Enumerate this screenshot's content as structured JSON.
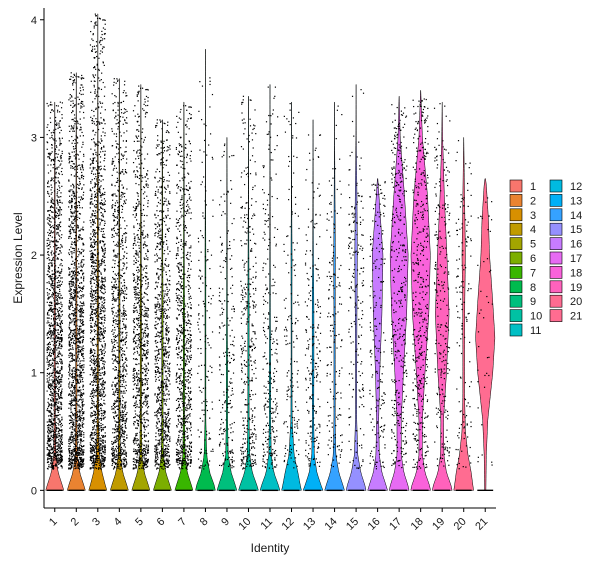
{
  "chart_data": {
    "type": "violin",
    "title": "",
    "xlabel": "Identity",
    "ylabel": "Expression Level",
    "ylim": [
      -0.15,
      4.1
    ],
    "yticks": [
      0,
      1,
      2,
      3,
      4
    ],
    "grid": false,
    "legend_position": "right",
    "points_overlay": true,
    "categories": [
      "1",
      "2",
      "3",
      "4",
      "5",
      "6",
      "7",
      "8",
      "9",
      "10",
      "11",
      "12",
      "13",
      "14",
      "15",
      "16",
      "17",
      "18",
      "19",
      "20",
      "21"
    ],
    "colors": [
      "#F8766D",
      "#EA8331",
      "#D89000",
      "#C09B00",
      "#A3A500",
      "#7CAE00",
      "#39B600",
      "#00BB4E",
      "#00BF7D",
      "#00C1A3",
      "#00BFC4",
      "#00BAE0",
      "#00B0F6",
      "#35A2FF",
      "#9590FF",
      "#C77CFF",
      "#E76BF3",
      "#FA62DB",
      "#FF62BC",
      "#FF6C91",
      "#FF6C91"
    ],
    "violins": [
      {
        "category": "1",
        "max": 3.3,
        "point_count": 1500,
        "profile": [
          [
            0,
            0.42
          ],
          [
            0.05,
            0.34
          ],
          [
            0.15,
            0.16
          ],
          [
            0.3,
            0.05
          ],
          [
            0.6,
            0.03
          ],
          [
            1,
            0.03
          ],
          [
            1.5,
            0.03
          ],
          [
            2,
            0.02
          ],
          [
            2.5,
            0.015
          ],
          [
            3,
            0.01
          ],
          [
            3.3,
            0.005
          ]
        ]
      },
      {
        "category": "2",
        "max": 3.55,
        "point_count": 1500,
        "profile": [
          [
            0,
            0.42
          ],
          [
            0.05,
            0.34
          ],
          [
            0.15,
            0.16
          ],
          [
            0.3,
            0.05
          ],
          [
            0.6,
            0.03
          ],
          [
            1,
            0.03
          ],
          [
            1.5,
            0.03
          ],
          [
            2,
            0.02
          ],
          [
            2.5,
            0.015
          ],
          [
            3,
            0.01
          ],
          [
            3.55,
            0.005
          ]
        ]
      },
      {
        "category": "3",
        "max": 4.05,
        "point_count": 1500,
        "profile": [
          [
            0,
            0.42
          ],
          [
            0.05,
            0.34
          ],
          [
            0.15,
            0.2
          ],
          [
            0.3,
            0.07
          ],
          [
            0.6,
            0.03
          ],
          [
            1,
            0.03
          ],
          [
            1.5,
            0.03
          ],
          [
            2,
            0.03
          ],
          [
            2.5,
            0.02
          ],
          [
            3,
            0.01
          ],
          [
            4.05,
            0.005
          ]
        ]
      },
      {
        "category": "4",
        "max": 3.5,
        "point_count": 1000,
        "profile": [
          [
            0,
            0.42
          ],
          [
            0.05,
            0.34
          ],
          [
            0.15,
            0.16
          ],
          [
            0.3,
            0.05
          ],
          [
            0.6,
            0.03
          ],
          [
            1,
            0.03
          ],
          [
            1.5,
            0.03
          ],
          [
            2,
            0.02
          ],
          [
            2.5,
            0.015
          ],
          [
            3,
            0.01
          ],
          [
            3.5,
            0.005
          ]
        ]
      },
      {
        "category": "5",
        "max": 3.45,
        "point_count": 950,
        "profile": [
          [
            0,
            0.42
          ],
          [
            0.05,
            0.34
          ],
          [
            0.15,
            0.16
          ],
          [
            0.3,
            0.05
          ],
          [
            0.6,
            0.03
          ],
          [
            1,
            0.03
          ],
          [
            1.5,
            0.03
          ],
          [
            2,
            0.02
          ],
          [
            2.5,
            0.015
          ],
          [
            3,
            0.01
          ],
          [
            3.45,
            0.005
          ]
        ]
      },
      {
        "category": "6",
        "max": 3.15,
        "point_count": 900,
        "profile": [
          [
            0,
            0.42
          ],
          [
            0.05,
            0.34
          ],
          [
            0.15,
            0.16
          ],
          [
            0.3,
            0.05
          ],
          [
            0.6,
            0.03
          ],
          [
            1,
            0.03
          ],
          [
            1.5,
            0.03
          ],
          [
            2,
            0.02
          ],
          [
            2.5,
            0.015
          ],
          [
            3,
            0.01
          ],
          [
            3.15,
            0.005
          ]
        ]
      },
      {
        "category": "7",
        "max": 3.3,
        "point_count": 850,
        "profile": [
          [
            0,
            0.42
          ],
          [
            0.05,
            0.34
          ],
          [
            0.15,
            0.16
          ],
          [
            0.3,
            0.05
          ],
          [
            0.6,
            0.03
          ],
          [
            1,
            0.03
          ],
          [
            1.5,
            0.03
          ],
          [
            2,
            0.02
          ],
          [
            2.5,
            0.015
          ],
          [
            3,
            0.01
          ],
          [
            3.3,
            0.005
          ]
        ]
      },
      {
        "category": "8",
        "max": 3.75,
        "point_count": 160,
        "profile": [
          [
            0,
            0.46
          ],
          [
            0.05,
            0.4
          ],
          [
            0.15,
            0.2
          ],
          [
            0.3,
            0.06
          ],
          [
            0.6,
            0.02
          ],
          [
            1,
            0.02
          ],
          [
            1.5,
            0.02
          ],
          [
            2,
            0.02
          ],
          [
            2.5,
            0.01
          ],
          [
            3,
            0.005
          ],
          [
            3.75,
            0.003
          ]
        ]
      },
      {
        "category": "9",
        "max": 3.0,
        "point_count": 220,
        "profile": [
          [
            0,
            0.46
          ],
          [
            0.05,
            0.38
          ],
          [
            0.15,
            0.2
          ],
          [
            0.3,
            0.06
          ],
          [
            0.6,
            0.03
          ],
          [
            1,
            0.03
          ],
          [
            1.5,
            0.02
          ],
          [
            2,
            0.015
          ],
          [
            2.5,
            0.01
          ],
          [
            3,
            0.003
          ]
        ]
      },
      {
        "category": "10",
        "max": 3.35,
        "point_count": 380,
        "profile": [
          [
            0,
            0.46
          ],
          [
            0.05,
            0.38
          ],
          [
            0.15,
            0.18
          ],
          [
            0.3,
            0.06
          ],
          [
            0.6,
            0.03
          ],
          [
            1,
            0.03
          ],
          [
            1.5,
            0.03
          ],
          [
            2,
            0.02
          ],
          [
            2.5,
            0.01
          ],
          [
            3,
            0.005
          ],
          [
            3.35,
            0.003
          ]
        ]
      },
      {
        "category": "11",
        "max": 3.45,
        "point_count": 280,
        "profile": [
          [
            0,
            0.46
          ],
          [
            0.05,
            0.38
          ],
          [
            0.15,
            0.18
          ],
          [
            0.3,
            0.06
          ],
          [
            0.6,
            0.03
          ],
          [
            1,
            0.03
          ],
          [
            1.5,
            0.02
          ],
          [
            2,
            0.015
          ],
          [
            2.5,
            0.01
          ],
          [
            3,
            0.005
          ],
          [
            3.45,
            0.003
          ]
        ]
      },
      {
        "category": "12",
        "max": 3.3,
        "point_count": 160,
        "profile": [
          [
            0,
            0.46
          ],
          [
            0.05,
            0.4
          ],
          [
            0.15,
            0.3
          ],
          [
            0.3,
            0.12
          ],
          [
            0.6,
            0.03
          ],
          [
            1,
            0.02
          ],
          [
            1.5,
            0.02
          ],
          [
            2,
            0.025
          ],
          [
            2.5,
            0.01
          ],
          [
            3,
            0.005
          ],
          [
            3.3,
            0.003
          ]
        ]
      },
      {
        "category": "13",
        "max": 3.15,
        "point_count": 220,
        "profile": [
          [
            0,
            0.46
          ],
          [
            0.05,
            0.36
          ],
          [
            0.15,
            0.18
          ],
          [
            0.3,
            0.06
          ],
          [
            0.6,
            0.03
          ],
          [
            1,
            0.04
          ],
          [
            1.5,
            0.04
          ],
          [
            2,
            0.02
          ],
          [
            2.5,
            0.01
          ],
          [
            3,
            0.005
          ],
          [
            3.15,
            0.003
          ]
        ]
      },
      {
        "category": "14",
        "max": 3.3,
        "point_count": 170,
        "profile": [
          [
            0,
            0.46
          ],
          [
            0.05,
            0.38
          ],
          [
            0.15,
            0.2
          ],
          [
            0.3,
            0.06
          ],
          [
            0.6,
            0.03
          ],
          [
            1,
            0.03
          ],
          [
            1.5,
            0.03
          ],
          [
            2,
            0.04
          ],
          [
            2.5,
            0.02
          ],
          [
            3,
            0.005
          ],
          [
            3.3,
            0.003
          ]
        ]
      },
      {
        "category": "15",
        "max": 3.45,
        "point_count": 200,
        "profile": [
          [
            0,
            0.46
          ],
          [
            0.05,
            0.4
          ],
          [
            0.15,
            0.22
          ],
          [
            0.3,
            0.08
          ],
          [
            0.6,
            0.03
          ],
          [
            1,
            0.03
          ],
          [
            1.5,
            0.04
          ],
          [
            2,
            0.06
          ],
          [
            2.5,
            0.04
          ],
          [
            3,
            0.01
          ],
          [
            3.45,
            0.003
          ]
        ]
      },
      {
        "category": "16",
        "max": 2.65,
        "point_count": 200,
        "profile": [
          [
            0,
            0.46
          ],
          [
            0.05,
            0.38
          ],
          [
            0.15,
            0.2
          ],
          [
            0.3,
            0.08
          ],
          [
            0.6,
            0.05
          ],
          [
            1,
            0.1
          ],
          [
            1.5,
            0.2
          ],
          [
            2,
            0.25
          ],
          [
            2.4,
            0.1
          ],
          [
            2.65,
            0.01
          ]
        ]
      },
      {
        "category": "17",
        "max": 3.35,
        "point_count": 400,
        "profile": [
          [
            0,
            0.46
          ],
          [
            0.05,
            0.4
          ],
          [
            0.15,
            0.22
          ],
          [
            0.3,
            0.1
          ],
          [
            0.6,
            0.1
          ],
          [
            1,
            0.2
          ],
          [
            1.5,
            0.35
          ],
          [
            2,
            0.42
          ],
          [
            2.5,
            0.25
          ],
          [
            3,
            0.05
          ],
          [
            3.35,
            0.005
          ]
        ]
      },
      {
        "category": "18",
        "max": 3.4,
        "point_count": 450,
        "profile": [
          [
            0,
            0.46
          ],
          [
            0.05,
            0.4
          ],
          [
            0.15,
            0.2
          ],
          [
            0.3,
            0.08
          ],
          [
            0.6,
            0.08
          ],
          [
            1,
            0.2
          ],
          [
            1.5,
            0.38
          ],
          [
            2,
            0.45
          ],
          [
            2.5,
            0.32
          ],
          [
            3,
            0.08
          ],
          [
            3.4,
            0.005
          ]
        ]
      },
      {
        "category": "19",
        "max": 3.3,
        "point_count": 260,
        "profile": [
          [
            0,
            0.46
          ],
          [
            0.05,
            0.4
          ],
          [
            0.15,
            0.2
          ],
          [
            0.3,
            0.08
          ],
          [
            0.6,
            0.06
          ],
          [
            1,
            0.2
          ],
          [
            1.5,
            0.32
          ],
          [
            2,
            0.22
          ],
          [
            2.5,
            0.1
          ],
          [
            3,
            0.02
          ],
          [
            3.3,
            0.003
          ]
        ]
      },
      {
        "category": "20",
        "max": 3.0,
        "point_count": 140,
        "profile": [
          [
            0,
            0.46
          ],
          [
            0.05,
            0.42
          ],
          [
            0.15,
            0.35
          ],
          [
            0.3,
            0.2
          ],
          [
            0.5,
            0.08
          ],
          [
            0.8,
            0.04
          ],
          [
            1.2,
            0.04
          ],
          [
            1.6,
            0.05
          ],
          [
            2,
            0.08
          ],
          [
            2.5,
            0.04
          ],
          [
            3,
            0.003
          ]
        ]
      },
      {
        "category": "21",
        "max": 2.65,
        "point_count": 40,
        "profile": [
          [
            0,
            0.03
          ],
          [
            0.3,
            0.05
          ],
          [
            0.6,
            0.12
          ],
          [
            1,
            0.35
          ],
          [
            1.3,
            0.45
          ],
          [
            1.6,
            0.35
          ],
          [
            2,
            0.2
          ],
          [
            2.3,
            0.15
          ],
          [
            2.6,
            0.05
          ],
          [
            2.65,
            0.01
          ]
        ]
      }
    ]
  }
}
